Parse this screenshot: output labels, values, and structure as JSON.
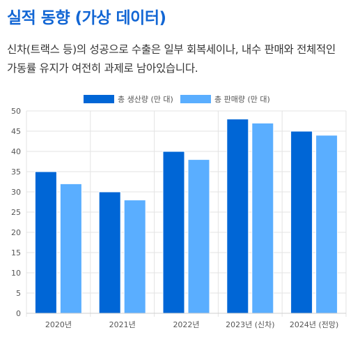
{
  "header": {
    "title": "실적 동향 (가상 데이터)",
    "description": "신차(트랙스 등)의 성공으로 수출은 일부 회복세이나, 내수 판매와 전체적인 가동률 유지가 여전히 과제로 남아있습니다."
  },
  "chart_data": {
    "type": "bar",
    "categories": [
      "2020년",
      "2021년",
      "2022년",
      "2023년 (신차)",
      "2024년 (전망)"
    ],
    "series": [
      {
        "name": "총 생산량 (만 대)",
        "values": [
          35,
          30,
          40,
          48,
          45
        ],
        "color": "#0066d6"
      },
      {
        "name": "총 판매량 (만 대)",
        "values": [
          32,
          28,
          38,
          47,
          44
        ],
        "color": "#5aaeff"
      }
    ],
    "ylim": [
      0,
      50
    ],
    "yticks": [
      0,
      5,
      10,
      15,
      20,
      25,
      30,
      35,
      40,
      45,
      50
    ],
    "grid": true,
    "legend_position": "top-center"
  }
}
